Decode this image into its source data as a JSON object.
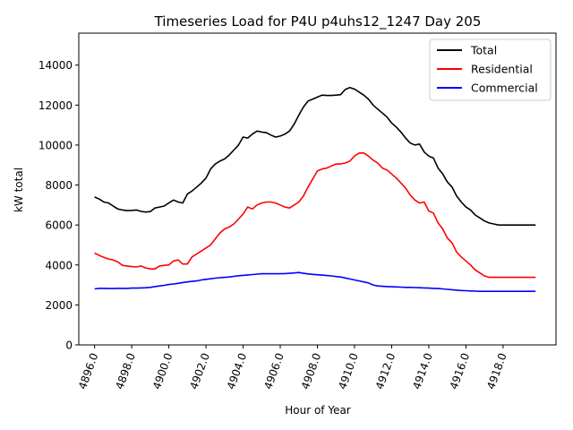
{
  "chart_data": {
    "type": "line",
    "title": "Timeseries Load for P4U p4uhs12_1247  Day 205",
    "xlabel": "Hour of Year",
    "ylabel": "kW total",
    "xlim": [
      4895.15,
      4920.85
    ],
    "ylim": [
      0,
      15600
    ],
    "xticks": [
      4896,
      4898,
      4900,
      4902,
      4904,
      4906,
      4908,
      4910,
      4912,
      4914,
      4916,
      4918
    ],
    "xtick_labels": [
      "4896.0",
      "4898.0",
      "4900.0",
      "4902.0",
      "4904.0",
      "4906.0",
      "4908.0",
      "4910.0",
      "4912.0",
      "4914.0",
      "4916.0",
      "4918.0"
    ],
    "yticks": [
      0,
      2000,
      4000,
      6000,
      8000,
      10000,
      12000,
      14000
    ],
    "ytick_labels": [
      "0",
      "2000",
      "4000",
      "6000",
      "8000",
      "10000",
      "12000",
      "14000"
    ],
    "grid": false,
    "legend_position": "top-right",
    "x": [
      4896.0,
      4896.25,
      4896.5,
      4896.75,
      4897.0,
      4897.25,
      4897.5,
      4897.75,
      4898.0,
      4898.25,
      4898.5,
      4898.75,
      4899.0,
      4899.25,
      4899.5,
      4899.75,
      4900.0,
      4900.25,
      4900.5,
      4900.75,
      4901.0,
      4901.25,
      4901.5,
      4901.75,
      4902.0,
      4902.25,
      4902.5,
      4902.75,
      4903.0,
      4903.25,
      4903.5,
      4903.75,
      4904.0,
      4904.25,
      4904.5,
      4904.75,
      4905.0,
      4905.25,
      4905.5,
      4905.75,
      4906.0,
      4906.25,
      4906.5,
      4906.75,
      4907.0,
      4907.25,
      4907.5,
      4907.75,
      4908.0,
      4908.25,
      4908.5,
      4908.75,
      4909.0,
      4909.25,
      4909.5,
      4909.75,
      4910.0,
      4910.25,
      4910.5,
      4910.75,
      4911.0,
      4911.25,
      4911.5,
      4911.75,
      4912.0,
      4912.25,
      4912.5,
      4912.75,
      4913.0,
      4913.25,
      4913.5,
      4913.75,
      4914.0,
      4914.25,
      4914.5,
      4914.75,
      4915.0,
      4915.25,
      4915.5,
      4915.75,
      4916.0,
      4916.25,
      4916.5,
      4916.75,
      4917.0,
      4917.25,
      4917.5,
      4917.75,
      4918.0,
      4918.25,
      4918.5,
      4918.75,
      4919.0,
      4919.25,
      4919.5,
      4919.75
    ],
    "series": [
      {
        "name": "Total",
        "color": "#000000",
        "values": [
          7400,
          7300,
          7150,
          7100,
          6950,
          6800,
          6750,
          6720,
          6730,
          6750,
          6680,
          6650,
          6670,
          6850,
          6900,
          6950,
          7100,
          7250,
          7150,
          7100,
          7550,
          7700,
          7900,
          8100,
          8350,
          8800,
          9050,
          9200,
          9300,
          9500,
          9750,
          10000,
          10400,
          10350,
          10550,
          10700,
          10650,
          10620,
          10500,
          10400,
          10450,
          10550,
          10700,
          11050,
          11500,
          11900,
          12200,
          12300,
          12400,
          12500,
          12480,
          12480,
          12500,
          12520,
          12780,
          12880,
          12800,
          12650,
          12500,
          12300,
          12000,
          11800,
          11600,
          11400,
          11100,
          10900,
          10650,
          10350,
          10100,
          10000,
          10050,
          9650,
          9450,
          9350,
          8850,
          8550,
          8150,
          7900,
          7450,
          7150,
          6900,
          6750,
          6500,
          6350,
          6200,
          6100,
          6050,
          6000,
          6000,
          6000,
          6000,
          6000,
          6000,
          6000,
          6000,
          6000
        ]
      },
      {
        "name": "Residential",
        "color": "#ff0000",
        "values": [
          4600,
          4480,
          4380,
          4300,
          4250,
          4150,
          3980,
          3950,
          3920,
          3900,
          3950,
          3850,
          3800,
          3800,
          3950,
          3980,
          4000,
          4200,
          4250,
          4050,
          4050,
          4400,
          4550,
          4700,
          4850,
          5000,
          5300,
          5600,
          5800,
          5900,
          6050,
          6300,
          6550,
          6900,
          6800,
          7000,
          7100,
          7150,
          7150,
          7100,
          7000,
          6900,
          6850,
          7000,
          7150,
          7450,
          7900,
          8300,
          8700,
          8800,
          8850,
          8950,
          9050,
          9050,
          9100,
          9200,
          9450,
          9600,
          9600,
          9450,
          9250,
          9100,
          8850,
          8750,
          8550,
          8350,
          8100,
          7850,
          7500,
          7250,
          7100,
          7150,
          6700,
          6600,
          6100,
          5800,
          5350,
          5100,
          4650,
          4400,
          4200,
          4000,
          3750,
          3600,
          3450,
          3380,
          3380,
          3380,
          3380,
          3380,
          3380,
          3380,
          3380,
          3380,
          3380,
          3380
        ]
      },
      {
        "name": "Commercial",
        "color": "#0000ff",
        "values": [
          2800,
          2830,
          2830,
          2820,
          2820,
          2830,
          2830,
          2830,
          2840,
          2840,
          2850,
          2860,
          2880,
          2920,
          2950,
          2980,
          3020,
          3050,
          3080,
          3120,
          3150,
          3180,
          3200,
          3250,
          3280,
          3310,
          3340,
          3360,
          3380,
          3400,
          3430,
          3460,
          3480,
          3500,
          3520,
          3540,
          3560,
          3560,
          3560,
          3560,
          3560,
          3570,
          3580,
          3600,
          3620,
          3580,
          3550,
          3530,
          3510,
          3490,
          3470,
          3450,
          3420,
          3400,
          3350,
          3300,
          3250,
          3200,
          3150,
          3100,
          3000,
          2950,
          2930,
          2920,
          2910,
          2900,
          2890,
          2880,
          2880,
          2870,
          2860,
          2850,
          2840,
          2830,
          2820,
          2800,
          2780,
          2760,
          2740,
          2720,
          2710,
          2700,
          2690,
          2680,
          2680,
          2680,
          2680,
          2680,
          2680,
          2680,
          2680,
          2680,
          2680,
          2680,
          2680,
          2680
        ]
      }
    ]
  }
}
